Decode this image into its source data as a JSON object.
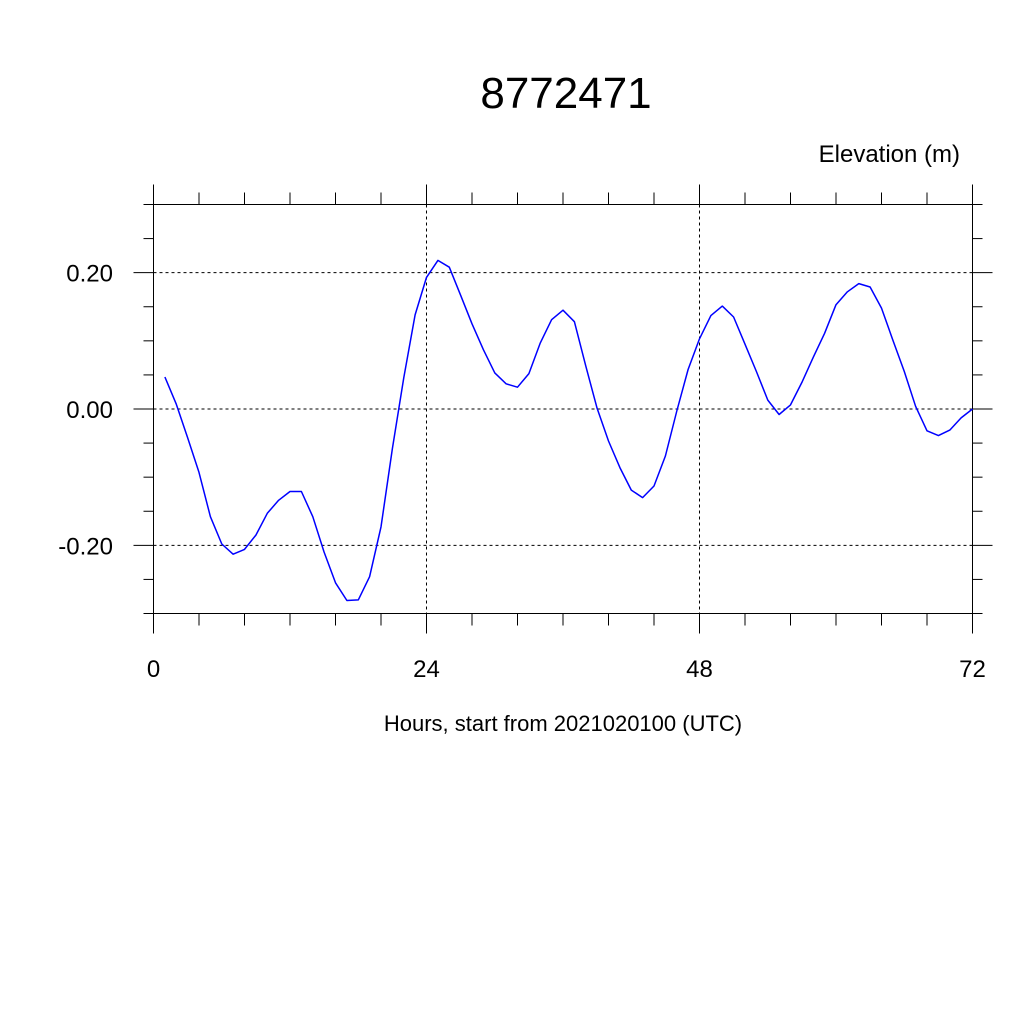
{
  "chart_data": {
    "type": "line",
    "title": "8772471",
    "ylabel": "Elevation (m)",
    "xlabel": "Hours, start from 2021020100 (UTC)",
    "xlim": [
      0,
      72
    ],
    "ylim": [
      -0.3,
      0.3
    ],
    "x_ticks": [
      0,
      24,
      48,
      72
    ],
    "x_tick_labels": [
      "0",
      "24",
      "48",
      "72"
    ],
    "y_ticks": [
      -0.2,
      0.0,
      0.2
    ],
    "y_tick_labels": [
      "-0.20",
      "0.00",
      "0.20"
    ],
    "grid": "dashed at labeled ticks",
    "line_color": "#0000ff",
    "series": [
      {
        "x": [
          1,
          2,
          3,
          4,
          5,
          6,
          7,
          8,
          9,
          10,
          11,
          12,
          13,
          14,
          15,
          16,
          17,
          18,
          19,
          20,
          21,
          22,
          23,
          24,
          25,
          26,
          27,
          28,
          29,
          30,
          31,
          32,
          33,
          34,
          35,
          36,
          37,
          38,
          39,
          40,
          41,
          42,
          43,
          44,
          45,
          46,
          47,
          48,
          49,
          50,
          51,
          52,
          53,
          54,
          55,
          56,
          57,
          58,
          59,
          60,
          61,
          62,
          63,
          64,
          65,
          66,
          67,
          68,
          69,
          70,
          71,
          72
        ],
        "values": [
          0.047,
          0.007,
          -0.042,
          -0.093,
          -0.158,
          -0.198,
          -0.213,
          -0.206,
          -0.185,
          -0.153,
          -0.134,
          -0.121,
          -0.121,
          -0.158,
          -0.21,
          -0.255,
          -0.281,
          -0.28,
          -0.246,
          -0.173,
          -0.058,
          0.046,
          0.138,
          0.193,
          0.218,
          0.208,
          0.167,
          0.125,
          0.087,
          0.053,
          0.037,
          0.032,
          0.052,
          0.097,
          0.131,
          0.145,
          0.128,
          0.063,
          0.001,
          -0.047,
          -0.086,
          -0.119,
          -0.13,
          -0.113,
          -0.069,
          -0.003,
          0.058,
          0.103,
          0.137,
          0.151,
          0.135,
          0.095,
          0.055,
          0.013,
          -0.008,
          0.006,
          0.039,
          0.076,
          0.111,
          0.153,
          0.172,
          0.184,
          0.179,
          0.148,
          0.101,
          0.055,
          0.004,
          -0.032,
          -0.039,
          -0.031,
          -0.013,
          0.0
        ]
      }
    ]
  }
}
